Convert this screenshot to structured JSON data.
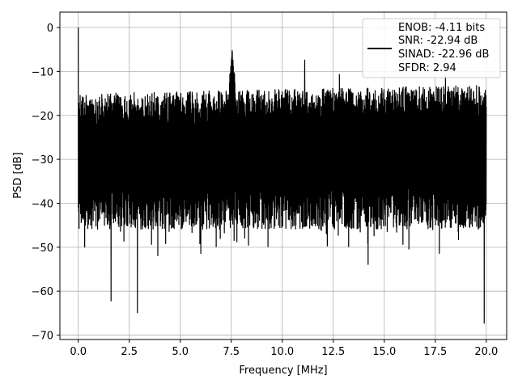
{
  "chart_data": {
    "type": "line",
    "title": "",
    "xlabel": "Frequency [MHz]",
    "ylabel": "PSD [dB]",
    "xlim": [
      -0.9,
      21.0
    ],
    "ylim": [
      -71,
      3.5
    ],
    "x_ticks": [
      0.0,
      2.5,
      5.0,
      7.5,
      10.0,
      12.5,
      15.0,
      17.5,
      20.0
    ],
    "x_tick_labels": [
      "0.0",
      "2.5",
      "5.0",
      "7.5",
      "10.0",
      "12.5",
      "15.0",
      "17.5",
      "20.0"
    ],
    "y_ticks": [
      0,
      -10,
      -20,
      -30,
      -40,
      -50,
      -60,
      -70
    ],
    "y_tick_labels": [
      "0",
      "−10",
      "−20",
      "−30",
      "−40",
      "−50",
      "−60",
      "−70"
    ],
    "grid": true,
    "legend_position": "top-right",
    "legend_entries": [
      "ENOB: -4.11 bits",
      "SNR: -22.94 dB",
      "SINAD: -22.96 dB",
      "SFDR: 2.94"
    ],
    "line_color": "#000000",
    "series": [
      {
        "x_range": [
          0.0,
          20.0
        ],
        "noise_floor_top_start": -15,
        "noise_floor_top_end": -13,
        "noise_floor_bottom": -36,
        "peaks": [
          {
            "x": 0.0,
            "y": 0.0
          },
          {
            "x": 7.55,
            "y": -5.2
          },
          {
            "x": 11.1,
            "y": -7.3
          },
          {
            "x": 12.8,
            "y": -10.6
          },
          {
            "x": 18.0,
            "y": -10.8
          }
        ],
        "dips": [
          {
            "x": 1.6,
            "y": -62.3
          },
          {
            "x": 2.9,
            "y": -65.0
          },
          {
            "x": 3.9,
            "y": -52.0
          },
          {
            "x": 6.0,
            "y": -51.5
          },
          {
            "x": 12.2,
            "y": -49.8
          },
          {
            "x": 14.2,
            "y": -54.0
          },
          {
            "x": 16.2,
            "y": -50.5
          },
          {
            "x": 19.9,
            "y": -67.4
          }
        ]
      }
    ]
  }
}
